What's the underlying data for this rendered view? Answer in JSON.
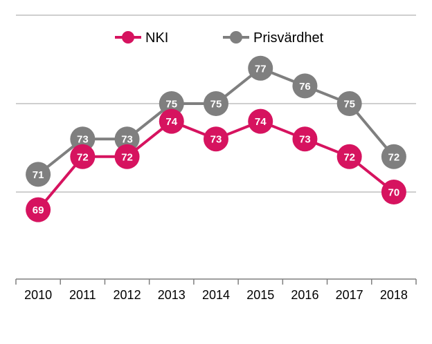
{
  "chart_data": {
    "type": "line",
    "title": "",
    "xlabel": "",
    "ylabel": "",
    "categories": [
      "2010",
      "2011",
      "2012",
      "2013",
      "2014",
      "2015",
      "2016",
      "2017",
      "2018"
    ],
    "ylim": [
      65,
      79
    ],
    "grid": true,
    "gridlines": [
      70,
      75,
      80
    ],
    "legend_position": "top-center",
    "series": [
      {
        "name": "NKI",
        "color": "#d6135f",
        "values": [
          69,
          72,
          72,
          74,
          73,
          74,
          73,
          72,
          70
        ]
      },
      {
        "name": "Prisvärdhet",
        "color": "#7f7f7f",
        "values": [
          71,
          73,
          73,
          75,
          75,
          77,
          76,
          75,
          72
        ]
      }
    ],
    "colors": {
      "grid": "#b2b2b2",
      "axis": "#7f7f7f",
      "label_text": "#ffffff"
    }
  }
}
